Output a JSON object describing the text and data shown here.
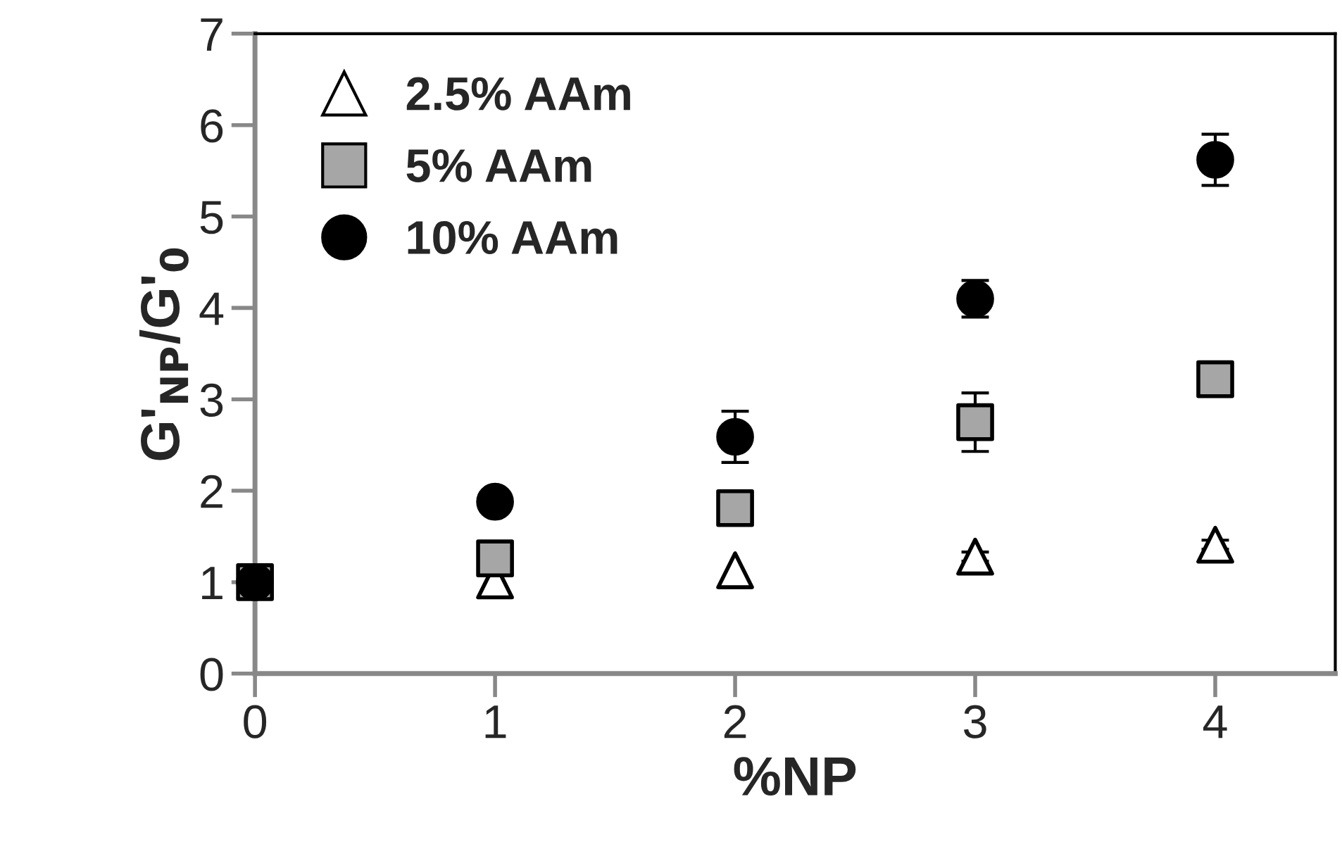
{
  "chart_data": {
    "type": "scatter",
    "xlabel": "%NP",
    "ylabel": "G'$_{NP}$/G'$_{0}$",
    "xlim": [
      0,
      4.5
    ],
    "xticks": [
      0,
      1,
      2,
      3,
      4
    ],
    "ylim": [
      0,
      7
    ],
    "yticks": [
      0,
      1,
      2,
      3,
      4,
      5,
      6,
      7
    ],
    "x": [
      0,
      1,
      2,
      3,
      4
    ],
    "grid": false,
    "legend": "top left",
    "series": [
      {
        "name": "2.5% AAm",
        "color": "#ffffff",
        "marker": "triangle",
        "values": [
          null,
          1.02,
          1.13,
          1.28,
          1.41
        ],
        "errors": [
          null,
          null,
          null,
          0.05,
          0.05
        ]
      },
      {
        "name": "5% AAm",
        "color": "#a6a6a6",
        "marker": "square",
        "values": [
          1,
          1.26,
          1.81,
          2.75,
          3.22
        ],
        "errors": [
          null,
          null,
          null,
          0.32,
          null
        ]
      },
      {
        "name": "10% AAm",
        "color": "#000000",
        "marker": "circle",
        "values": [
          1,
          1.88,
          2.59,
          4.1,
          5.62
        ],
        "errors": [
          null,
          0.1,
          0.28,
          0.2,
          0.28
        ]
      }
    ]
  }
}
